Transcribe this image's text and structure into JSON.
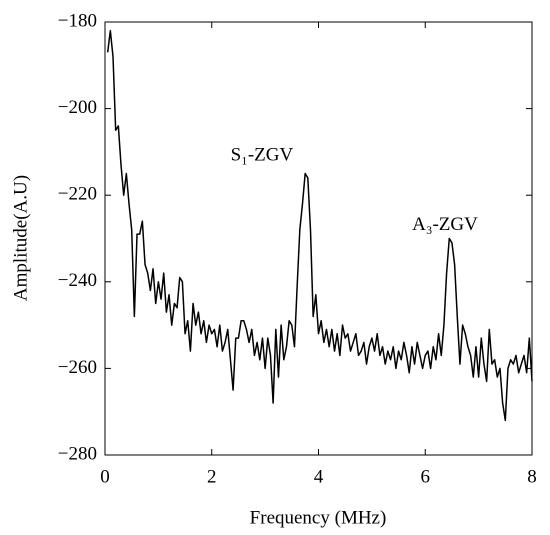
{
  "chart_data": {
    "type": "line",
    "xlabel": "Frequency (MHz)",
    "ylabel": "Amplitude(A.U)",
    "color": "#000000",
    "xlim": [
      0,
      8
    ],
    "xticks": [
      0,
      2,
      4,
      6,
      8
    ],
    "ylim": [
      -280,
      -180
    ],
    "yticks": [
      {
        "value": -280,
        "label": "−280"
      },
      {
        "value": -260,
        "label": "−260"
      },
      {
        "value": -240,
        "label": "−240"
      },
      {
        "value": -220,
        "label": "−220"
      },
      {
        "value": -200,
        "label": "−200"
      },
      {
        "value": -180,
        "label": "−180"
      }
    ],
    "grid": false,
    "annotations": [
      {
        "text": "S₁-ZGV",
        "x": 2.94,
        "y": -211
      },
      {
        "text": "A₃-ZGV",
        "x": 6.37,
        "y": -227
      }
    ],
    "x": [
      0.05,
      0.1,
      0.15,
      0.2,
      0.25,
      0.3,
      0.35,
      0.4,
      0.45,
      0.5,
      0.55,
      0.6,
      0.65,
      0.7,
      0.75,
      0.8,
      0.85,
      0.9,
      0.95,
      1.0,
      1.05,
      1.1,
      1.15,
      1.2,
      1.25,
      1.3,
      1.35,
      1.4,
      1.45,
      1.5,
      1.55,
      1.6,
      1.65,
      1.7,
      1.75,
      1.8,
      1.85,
      1.9,
      1.95,
      2.0,
      2.05,
      2.1,
      2.15,
      2.2,
      2.25,
      2.3,
      2.35,
      2.4,
      2.45,
      2.5,
      2.55,
      2.6,
      2.65,
      2.7,
      2.75,
      2.8,
      2.85,
      2.9,
      2.95,
      3.0,
      3.05,
      3.1,
      3.15,
      3.2,
      3.25,
      3.3,
      3.35,
      3.4,
      3.45,
      3.5,
      3.55,
      3.6,
      3.65,
      3.7,
      3.75,
      3.8,
      3.85,
      3.9,
      3.95,
      4.0,
      4.05,
      4.1,
      4.15,
      4.2,
      4.25,
      4.3,
      4.35,
      4.4,
      4.45,
      4.5,
      4.55,
      4.6,
      4.65,
      4.7,
      4.75,
      4.8,
      4.85,
      4.9,
      4.95,
      5.0,
      5.05,
      5.1,
      5.15,
      5.2,
      5.25,
      5.3,
      5.35,
      5.4,
      5.45,
      5.5,
      5.55,
      5.6,
      5.65,
      5.7,
      5.75,
      5.8,
      5.85,
      5.9,
      5.95,
      6.0,
      6.05,
      6.1,
      6.15,
      6.2,
      6.25,
      6.3,
      6.35,
      6.4,
      6.45,
      6.5,
      6.55,
      6.6,
      6.65,
      6.7,
      6.75,
      6.8,
      6.85,
      6.9,
      6.95,
      7.0,
      7.05,
      7.1,
      7.15,
      7.2,
      7.25,
      7.3,
      7.35,
      7.4,
      7.45,
      7.5,
      7.55,
      7.6,
      7.65,
      7.7,
      7.75,
      7.8,
      7.85,
      7.9,
      7.95,
      8.0
    ],
    "values": [
      -187,
      -182,
      -188,
      -205,
      -204,
      -213,
      -220,
      -215,
      -222,
      -228,
      -248,
      -229,
      -229,
      -226,
      -236,
      -238,
      -242,
      -237,
      -245,
      -240,
      -244,
      -238,
      -247,
      -243,
      -250,
      -245,
      -246,
      -239,
      -240,
      -252,
      -249,
      -256,
      -245,
      -250,
      -247,
      -252,
      -249,
      -254,
      -250,
      -252,
      -251,
      -255,
      -250,
      -256,
      -254,
      -251,
      -258,
      -265,
      -253,
      -253,
      -249,
      -249,
      -251,
      -254,
      -251,
      -257,
      -254,
      -258,
      -253,
      -260,
      -253,
      -257,
      -268,
      -251,
      -262,
      -250,
      -258,
      -255,
      -249,
      -250,
      -255,
      -241,
      -228,
      -222,
      -215,
      -216,
      -228,
      -248,
      -243,
      -252,
      -249,
      -254,
      -251,
      -255,
      -251,
      -256,
      -252,
      -257,
      -250,
      -253,
      -252,
      -256,
      -254,
      -252,
      -257,
      -256,
      -254,
      -259,
      -255,
      -253,
      -256,
      -252,
      -257,
      -255,
      -259,
      -256,
      -258,
      -255,
      -260,
      -256,
      -258,
      -254,
      -257,
      -261,
      -255,
      -259,
      -254,
      -257,
      -260,
      -257,
      -256,
      -260,
      -255,
      -258,
      -252,
      -257,
      -250,
      -238,
      -230,
      -231,
      -236,
      -248,
      -259,
      -250,
      -252,
      -255,
      -257,
      -262,
      -255,
      -262,
      -253,
      -259,
      -263,
      -251,
      -259,
      -258,
      -262,
      -260,
      -268,
      -272,
      -260,
      -258,
      -259,
      -257,
      -261,
      -259,
      -257,
      -261,
      -253,
      -263
    ]
  }
}
